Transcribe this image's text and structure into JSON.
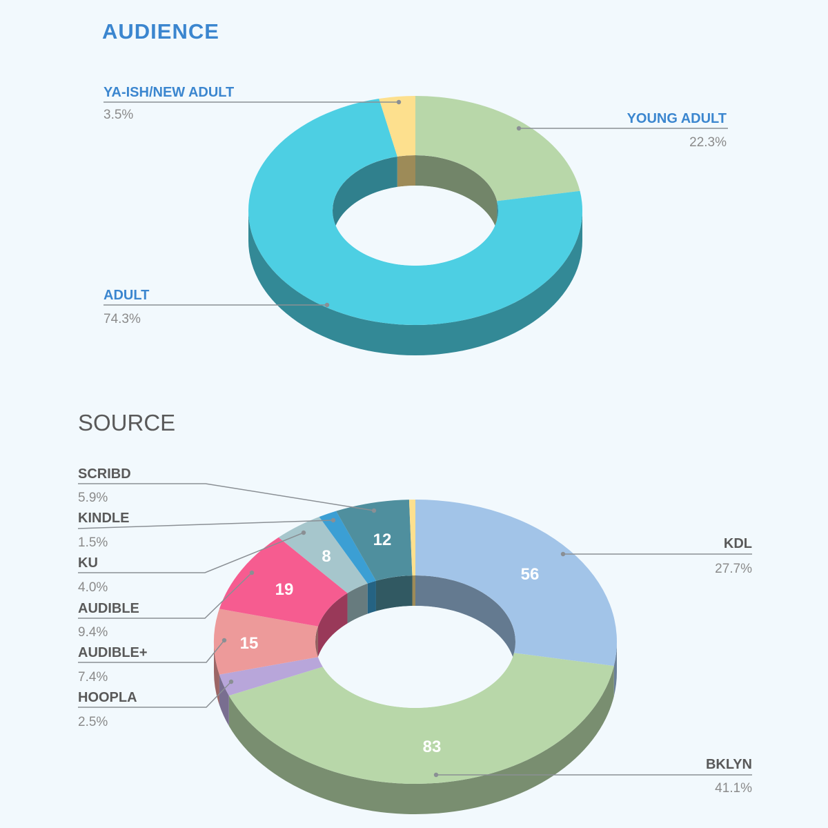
{
  "chart_data": [
    {
      "type": "pie",
      "title": "AUDIENCE",
      "slices": [
        {
          "label": "YOUNG ADULT",
          "percent": "22.3%",
          "value": 22.3,
          "color": "#b8d7a9"
        },
        {
          "label": "ADULT",
          "percent": "74.3%",
          "value": 74.3,
          "color": "#4dcfe3"
        },
        {
          "label": "YA-ISH/NEW ADULT",
          "percent": "3.5%",
          "value": 3.5,
          "color": "#fde08e"
        }
      ]
    },
    {
      "type": "pie",
      "title": "SOURCE",
      "slices": [
        {
          "label": "KDL",
          "percent": "27.7%",
          "value": 56,
          "color": "#a2c4e8"
        },
        {
          "label": "BKLYN",
          "percent": "41.1%",
          "value": 83,
          "color": "#b8d7a9"
        },
        {
          "label": "HOOPLA",
          "percent": "2.5%",
          "value": 5,
          "color": "#b8a6da"
        },
        {
          "label": "AUDIBLE+",
          "percent": "7.4%",
          "value": 15,
          "color": "#ed9a9a"
        },
        {
          "label": "AUDIBLE",
          "percent": "9.4%",
          "value": 19,
          "color": "#f65c90"
        },
        {
          "label": "KU",
          "percent": "4.0%",
          "value": 8,
          "color": "#a6c6cc"
        },
        {
          "label": "KINDLE",
          "percent": "1.5%",
          "value": 3,
          "color": "#3b9fd4"
        },
        {
          "label": "SCRIBD",
          "percent": "5.9%",
          "value": 12,
          "color": "#4f8f9e"
        },
        {
          "label": "",
          "percent": "",
          "value": 1,
          "color": "#fde08e"
        }
      ]
    }
  ]
}
